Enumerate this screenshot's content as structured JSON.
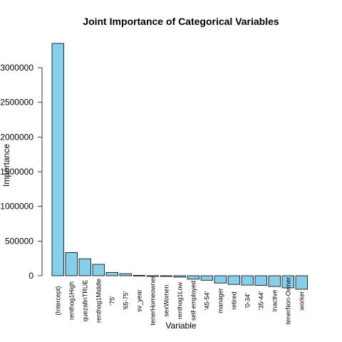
{
  "chart_data": {
    "type": "bar",
    "title": "Joint Importance of Categorical Variables",
    "xlabel": "Variable",
    "ylabel": "Importance",
    "bar_color": "#87CEEB",
    "ylim": [
      -200000,
      3500000
    ],
    "yticks": [
      0,
      500000,
      1000000,
      1500000,
      2000000,
      2500000,
      3000000
    ],
    "ytick_labels": [
      "0",
      "500000",
      "1000000",
      "1500000",
      "2000000",
      "2500000",
      "3000000"
    ],
    "grid": false,
    "categories": [
      "(Intercept)",
      "renthog1High",
      "quezafinTRUE",
      "renthog1Middle",
      "'75'",
      "'65-75'",
      "sv_year",
      "tenerHomeowner",
      "sexWomen",
      "renthog1Low",
      "self-employed",
      "'45-54'",
      "manager",
      "retired",
      "'0-34'",
      "'35-44'",
      "inactive",
      "tenerNon-Owner",
      "worker"
    ],
    "values": [
      3350000,
      335000,
      245000,
      165000,
      48000,
      30000,
      5000,
      -8000,
      -10000,
      -20000,
      -50000,
      -65000,
      -105000,
      -125000,
      -135000,
      -140000,
      -155000,
      -175000,
      -195000
    ]
  }
}
